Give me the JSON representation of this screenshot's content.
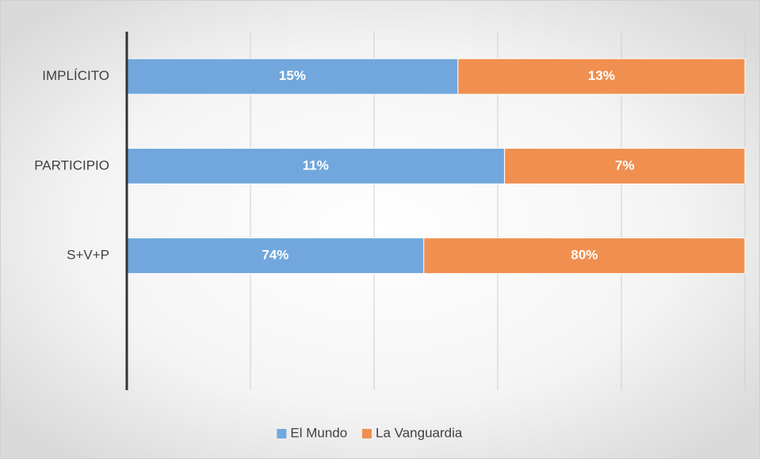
{
  "chart_data": {
    "type": "bar",
    "orientation": "horizontal",
    "stacking": "percent",
    "categories": [
      "IMPLÍCITO",
      "PARTICIPIO",
      "S+V+P",
      null
    ],
    "series": [
      {
        "name": "El Mundo",
        "color": "#71a7dc",
        "values": [
          15,
          11,
          74,
          null
        ],
        "value_labels": [
          "15%",
          "11%",
          "74%",
          null
        ]
      },
      {
        "name": "La Vanguardia",
        "color": "#f08f4f",
        "values": [
          13,
          7,
          80,
          null
        ],
        "value_labels": [
          "13%",
          "7%",
          "80%",
          null
        ]
      }
    ],
    "xlim": [
      0,
      100
    ],
    "xticks": [
      0,
      20,
      40,
      60,
      80,
      100
    ],
    "grid": true,
    "legend": "bottom"
  }
}
